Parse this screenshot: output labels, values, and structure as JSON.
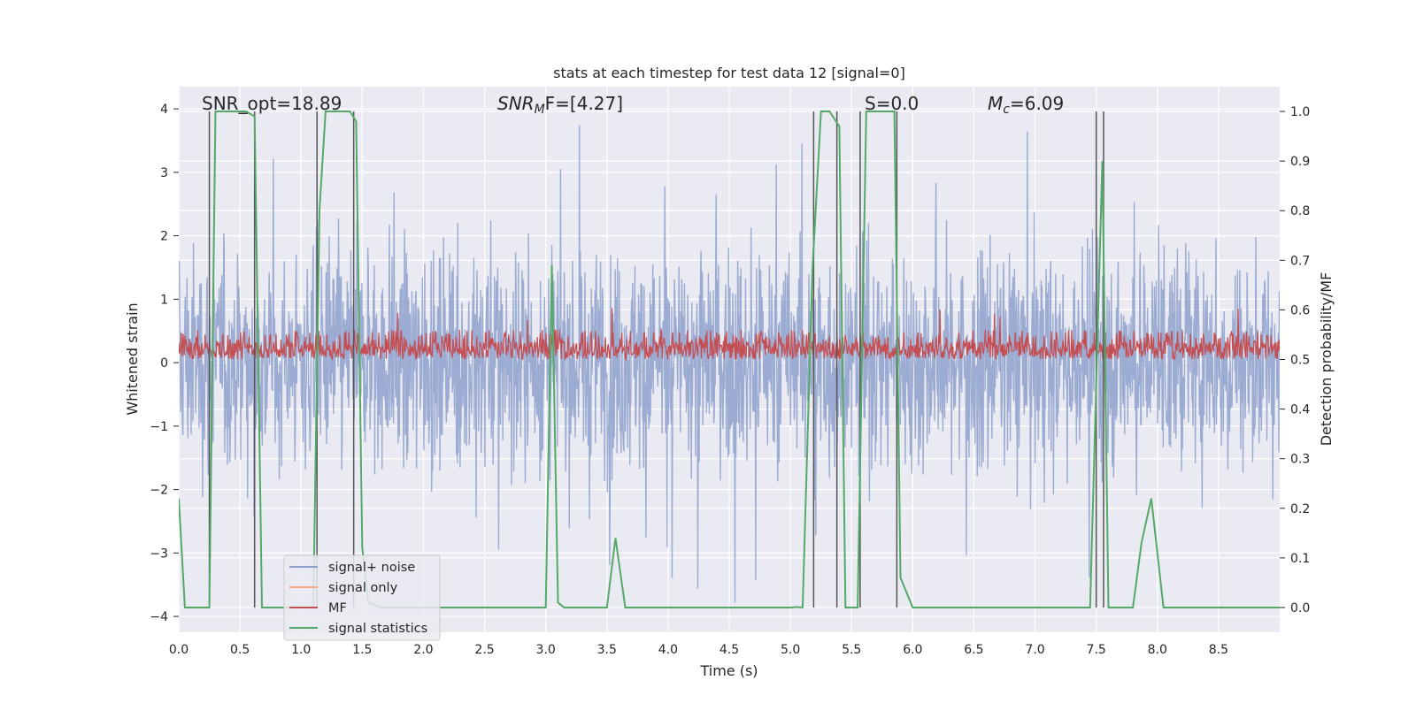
{
  "chart_data": {
    "type": "line",
    "title": "stats at each timestep for test data 12 [signal=0]",
    "xlabel": "Time (s)",
    "ylabel_left": "Whitened strain",
    "ylabel_right": "Detection probability/MF",
    "xlim": [
      0.0,
      9.0
    ],
    "ylim_left": [
      -4.25,
      4.35
    ],
    "ylim_right": [
      -0.05,
      1.05
    ],
    "x_ticks": [
      "0.0",
      "0.5",
      "1.0",
      "1.5",
      "2.0",
      "2.5",
      "3.0",
      "3.5",
      "4.0",
      "4.5",
      "5.0",
      "5.5",
      "6.0",
      "6.5",
      "7.0",
      "7.5",
      "8.0",
      "8.5"
    ],
    "y_ticks_left": [
      "−4",
      "−3",
      "−2",
      "−1",
      "0",
      "1",
      "2",
      "3",
      "4"
    ],
    "y_ticks_right": [
      "0.0",
      "0.1",
      "0.2",
      "0.3",
      "0.4",
      "0.5",
      "0.6",
      "0.7",
      "0.8",
      "0.9",
      "1.0"
    ],
    "annotations": {
      "snr_opt": "SNR_opt=18.89",
      "snr_mf_prefix": "SNR",
      "snr_mf_sub": "M",
      "snr_mf_rest": "F=[4.27]",
      "s_value": "S=0.0",
      "mc_prefix": "M",
      "mc_sub": "c",
      "mc_rest": "=6.09"
    },
    "legend": {
      "position": "lower-left",
      "entries": [
        "signal+ noise",
        "signal only",
        "MF",
        "signal statistics"
      ]
    },
    "series": [
      {
        "name": "signal+ noise",
        "axis": "left",
        "color": "#8da0cb",
        "typical_range": [
          -1.5,
          1.6
        ],
        "peak_range": [
          -3.9,
          3.9
        ]
      },
      {
        "name": "signal only",
        "axis": "left",
        "color": "#f4a582",
        "values": []
      },
      {
        "name": "MF",
        "axis": "right",
        "color": "#c44e52",
        "typical_range": [
          0.5,
          0.56
        ],
        "peak_value": 0.62
      },
      {
        "name": "signal statistics",
        "axis": "right",
        "color": "#55a868",
        "x": [
          0.0,
          0.05,
          0.25,
          0.3,
          0.55,
          0.62,
          0.68,
          1.1,
          1.15,
          1.2,
          1.4,
          1.45,
          1.5,
          1.55,
          1.65,
          1.8,
          2.5,
          3.0,
          3.05,
          3.1,
          3.15,
          3.2,
          3.5,
          3.57,
          3.65,
          3.7,
          4.5,
          5.0,
          5.05,
          5.1,
          5.18,
          5.25,
          5.32,
          5.4,
          5.45,
          5.55,
          5.62,
          5.85,
          5.9,
          6.0,
          6.5,
          7.45,
          7.55,
          7.6,
          7.65,
          7.8,
          7.87,
          7.95,
          8.05,
          8.5,
          9.0
        ],
        "y": [
          0.22,
          0.0,
          0.0,
          1.0,
          1.0,
          0.99,
          0.0,
          0.0,
          0.8,
          1.0,
          1.0,
          0.98,
          0.12,
          0.01,
          0.0,
          0.0,
          0.0,
          0.0,
          0.69,
          0.01,
          0.0,
          0.0,
          0.0,
          0.14,
          0.0,
          0.0,
          0.0,
          0.0,
          0.001,
          0.0,
          0.68,
          1.0,
          1.0,
          0.97,
          0.0,
          0.0,
          1.0,
          1.0,
          0.06,
          0.0,
          0.0,
          0.0,
          0.9,
          0.0,
          0.0,
          0.0,
          0.13,
          0.22,
          0.0,
          0.0,
          0.0
        ]
      }
    ],
    "vertical_markers_x": [
      0.25,
      0.62,
      1.13,
      1.43,
      5.19,
      5.38,
      5.57,
      5.87,
      7.5,
      7.56
    ],
    "grid": true
  }
}
